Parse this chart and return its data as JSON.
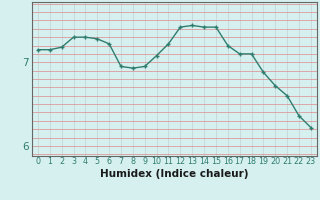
{
  "x": [
    0,
    1,
    2,
    3,
    4,
    5,
    6,
    7,
    8,
    9,
    10,
    11,
    12,
    13,
    14,
    15,
    16,
    17,
    18,
    19,
    20,
    21,
    22,
    23
  ],
  "y": [
    7.15,
    7.15,
    7.18,
    7.3,
    7.3,
    7.28,
    7.22,
    6.95,
    6.93,
    6.95,
    7.08,
    7.22,
    7.42,
    7.44,
    7.42,
    7.42,
    7.2,
    7.1,
    7.1,
    6.88,
    6.72,
    6.6,
    6.36,
    6.22
  ],
  "line_color": "#2e7d6e",
  "marker_color": "#2e7d6e",
  "bg_color": "#d6f0f0",
  "grid_color_v": "#c8dada",
  "grid_color_h": "#e08888",
  "xlabel": "Humidex (Indice chaleur)",
  "xlim": [
    -0.5,
    23.5
  ],
  "ylim": [
    5.88,
    7.72
  ],
  "yticks": [
    6,
    7
  ],
  "xtick_labels": [
    "0",
    "1",
    "2",
    "3",
    "4",
    "5",
    "6",
    "7",
    "8",
    "9",
    "10",
    "11",
    "12",
    "13",
    "14",
    "15",
    "16",
    "17",
    "18",
    "19",
    "20",
    "21",
    "22",
    "23"
  ],
  "xlabel_fontsize": 7.5,
  "ytick_fontsize": 7.5,
  "xtick_fontsize": 5.8,
  "linewidth": 1.0,
  "markersize": 3.5,
  "marker_ew": 1.0
}
